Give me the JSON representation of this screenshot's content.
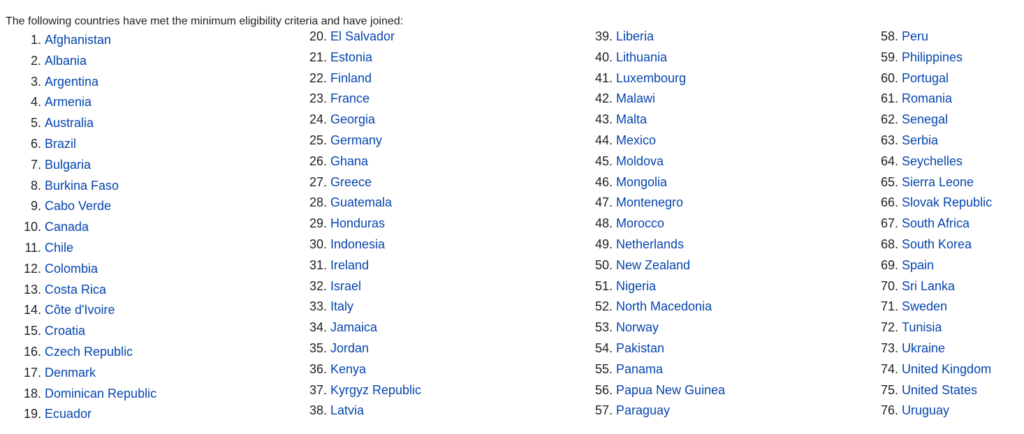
{
  "intro": "The following countries have met the minimum eligibility criteria and have joined:",
  "colors": {
    "link": "#0645ad",
    "text": "#202122"
  },
  "columns": [
    [
      {
        "num": "1.",
        "name": "Afghanistan"
      },
      {
        "num": "2.",
        "name": "Albania"
      },
      {
        "num": "3.",
        "name": "Argentina"
      },
      {
        "num": "4.",
        "name": "Armenia"
      },
      {
        "num": "5.",
        "name": "Australia"
      },
      {
        "num": "6.",
        "name": "Brazil"
      },
      {
        "num": "7.",
        "name": "Bulgaria"
      },
      {
        "num": "8.",
        "name": "Burkina Faso"
      },
      {
        "num": "9.",
        "name": "Cabo Verde"
      },
      {
        "num": "10.",
        "name": "Canada"
      },
      {
        "num": "11.",
        "name": "Chile"
      },
      {
        "num": "12.",
        "name": "Colombia"
      },
      {
        "num": "13.",
        "name": "Costa Rica"
      },
      {
        "num": "14.",
        "name": "Côte d'Ivoire"
      },
      {
        "num": "15.",
        "name": "Croatia"
      },
      {
        "num": "16.",
        "name": "Czech Republic"
      },
      {
        "num": "17.",
        "name": "Denmark"
      },
      {
        "num": "18.",
        "name": "Dominican Republic"
      },
      {
        "num": "19.",
        "name": "Ecuador"
      }
    ],
    [
      {
        "num": "20.",
        "name": "El Salvador"
      },
      {
        "num": "21.",
        "name": "Estonia"
      },
      {
        "num": "22.",
        "name": "Finland"
      },
      {
        "num": "23.",
        "name": "France"
      },
      {
        "num": "24.",
        "name": "Georgia"
      },
      {
        "num": "25.",
        "name": "Germany"
      },
      {
        "num": "26.",
        "name": "Ghana"
      },
      {
        "num": "27.",
        "name": "Greece"
      },
      {
        "num": "28.",
        "name": "Guatemala"
      },
      {
        "num": "29.",
        "name": "Honduras"
      },
      {
        "num": "30.",
        "name": "Indonesia"
      },
      {
        "num": "31.",
        "name": "Ireland"
      },
      {
        "num": "32.",
        "name": "Israel"
      },
      {
        "num": "33.",
        "name": "Italy"
      },
      {
        "num": "34.",
        "name": "Jamaica"
      },
      {
        "num": "35.",
        "name": "Jordan"
      },
      {
        "num": "36.",
        "name": "Kenya"
      },
      {
        "num": "37.",
        "name": "Kyrgyz Republic"
      },
      {
        "num": "38.",
        "name": "Latvia"
      }
    ],
    [
      {
        "num": "39.",
        "name": "Liberia"
      },
      {
        "num": "40.",
        "name": "Lithuania"
      },
      {
        "num": "41.",
        "name": "Luxembourg"
      },
      {
        "num": "42.",
        "name": "Malawi"
      },
      {
        "num": "43.",
        "name": "Malta"
      },
      {
        "num": "44.",
        "name": "Mexico"
      },
      {
        "num": "45.",
        "name": "Moldova"
      },
      {
        "num": "46.",
        "name": "Mongolia"
      },
      {
        "num": "47.",
        "name": "Montenegro"
      },
      {
        "num": "48.",
        "name": "Morocco"
      },
      {
        "num": "49.",
        "name": "Netherlands"
      },
      {
        "num": "50.",
        "name": "New Zealand"
      },
      {
        "num": "51.",
        "name": "Nigeria"
      },
      {
        "num": "52.",
        "name": "North Macedonia"
      },
      {
        "num": "53.",
        "name": "Norway"
      },
      {
        "num": "54.",
        "name": "Pakistan"
      },
      {
        "num": "55.",
        "name": "Panama"
      },
      {
        "num": "56.",
        "name": "Papua New Guinea"
      },
      {
        "num": "57.",
        "name": "Paraguay"
      }
    ],
    [
      {
        "num": "58.",
        "name": "Peru"
      },
      {
        "num": "59.",
        "name": "Philippines"
      },
      {
        "num": "60.",
        "name": "Portugal"
      },
      {
        "num": "61.",
        "name": "Romania"
      },
      {
        "num": "62.",
        "name": "Senegal"
      },
      {
        "num": "63.",
        "name": "Serbia"
      },
      {
        "num": "64.",
        "name": "Seychelles"
      },
      {
        "num": "65.",
        "name": "Sierra Leone"
      },
      {
        "num": "66.",
        "name": "Slovak Republic"
      },
      {
        "num": "67.",
        "name": "South Africa"
      },
      {
        "num": "68.",
        "name": "South Korea"
      },
      {
        "num": "69.",
        "name": "Spain"
      },
      {
        "num": "70.",
        "name": "Sri Lanka"
      },
      {
        "num": "71.",
        "name": "Sweden"
      },
      {
        "num": "72.",
        "name": "Tunisia"
      },
      {
        "num": "73.",
        "name": "Ukraine"
      },
      {
        "num": "74.",
        "name": "United Kingdom"
      },
      {
        "num": "75.",
        "name": "United States"
      },
      {
        "num": "76.",
        "name": "Uruguay"
      }
    ]
  ]
}
